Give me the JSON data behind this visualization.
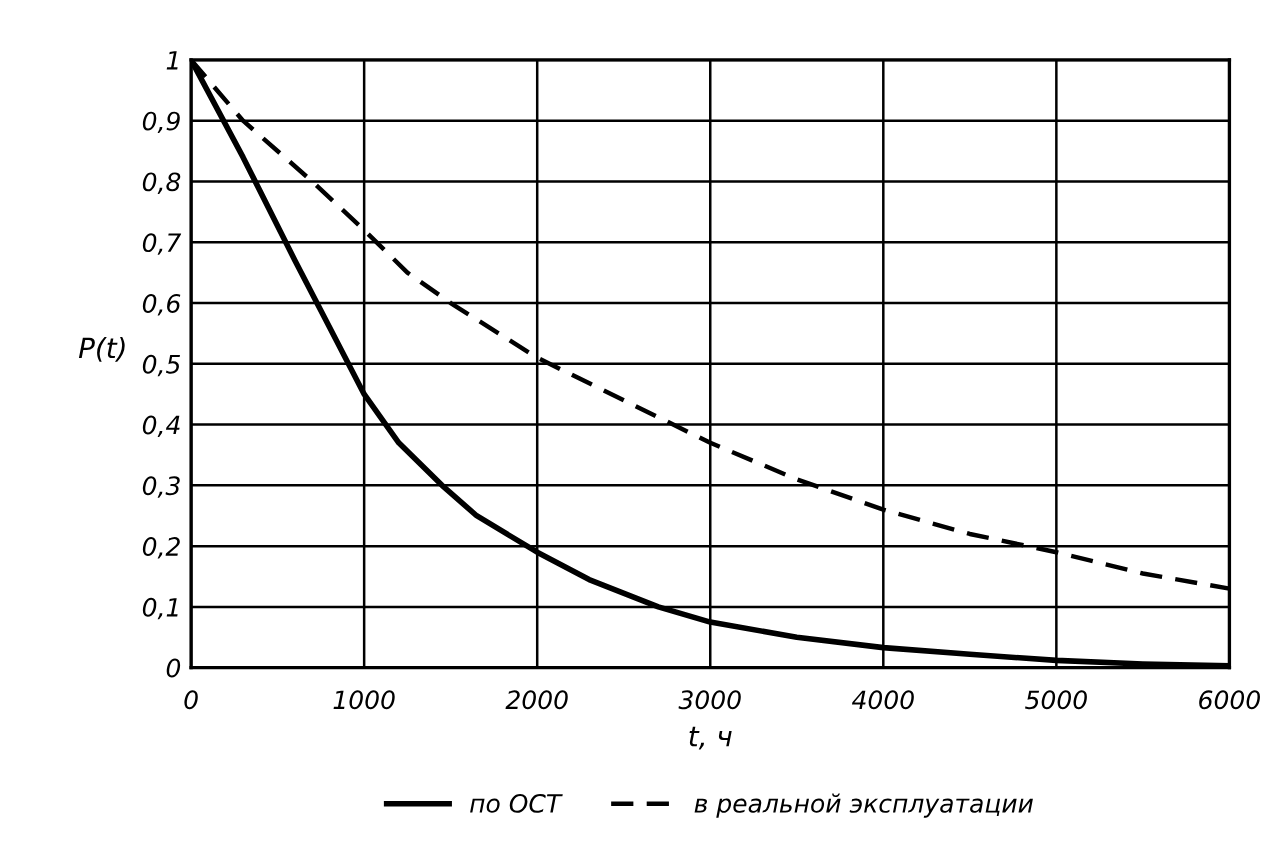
{
  "chart_data": {
    "type": "line",
    "xlabel": "t, ч",
    "ylabel": "P(t)",
    "xlim": [
      0,
      6000
    ],
    "ylim": [
      0,
      1
    ],
    "xticks": [
      0,
      1000,
      2000,
      3000,
      4000,
      5000,
      6000
    ],
    "yticks": [
      {
        "value": 0,
        "label": "0"
      },
      {
        "value": 0.1,
        "label": "0,1"
      },
      {
        "value": 0.2,
        "label": "0,2"
      },
      {
        "value": 0.3,
        "label": "0,3"
      },
      {
        "value": 0.4,
        "label": "0,4"
      },
      {
        "value": 0.5,
        "label": "0,5"
      },
      {
        "value": 0.6,
        "label": "0,6"
      },
      {
        "value": 0.7,
        "label": "0,7"
      },
      {
        "value": 0.8,
        "label": "0,8"
      },
      {
        "value": 0.9,
        "label": "0,9"
      },
      {
        "value": 1,
        "label": "1"
      }
    ],
    "grid": true,
    "legend": "bottom",
    "marker": "none",
    "series": [
      {
        "name": "по ОСТ",
        "color": "#000000",
        "line_style": "solid",
        "x": [
          0,
          300,
          600,
          800,
          1000,
          1200,
          1450,
          1650,
          2000,
          2300,
          2700,
          3000,
          3500,
          4000,
          4500,
          5000,
          5500,
          6000
        ],
        "values": [
          1,
          0.84,
          0.67,
          0.56,
          0.45,
          0.37,
          0.3,
          0.25,
          0.19,
          0.145,
          0.1,
          0.075,
          0.05,
          0.033,
          0.022,
          0.012,
          0.006,
          0.003
        ]
      },
      {
        "name": "в реальной эксплуатации",
        "color": "#000000",
        "line_style": "dashed",
        "x": [
          0,
          300,
          700,
          1000,
          1250,
          1500,
          2000,
          2500,
          3000,
          3500,
          4000,
          4500,
          5000,
          5500,
          6000
        ],
        "values": [
          1,
          0.9,
          0.8,
          0.72,
          0.65,
          0.6,
          0.51,
          0.44,
          0.37,
          0.31,
          0.26,
          0.22,
          0.19,
          0.155,
          0.13
        ]
      }
    ]
  }
}
